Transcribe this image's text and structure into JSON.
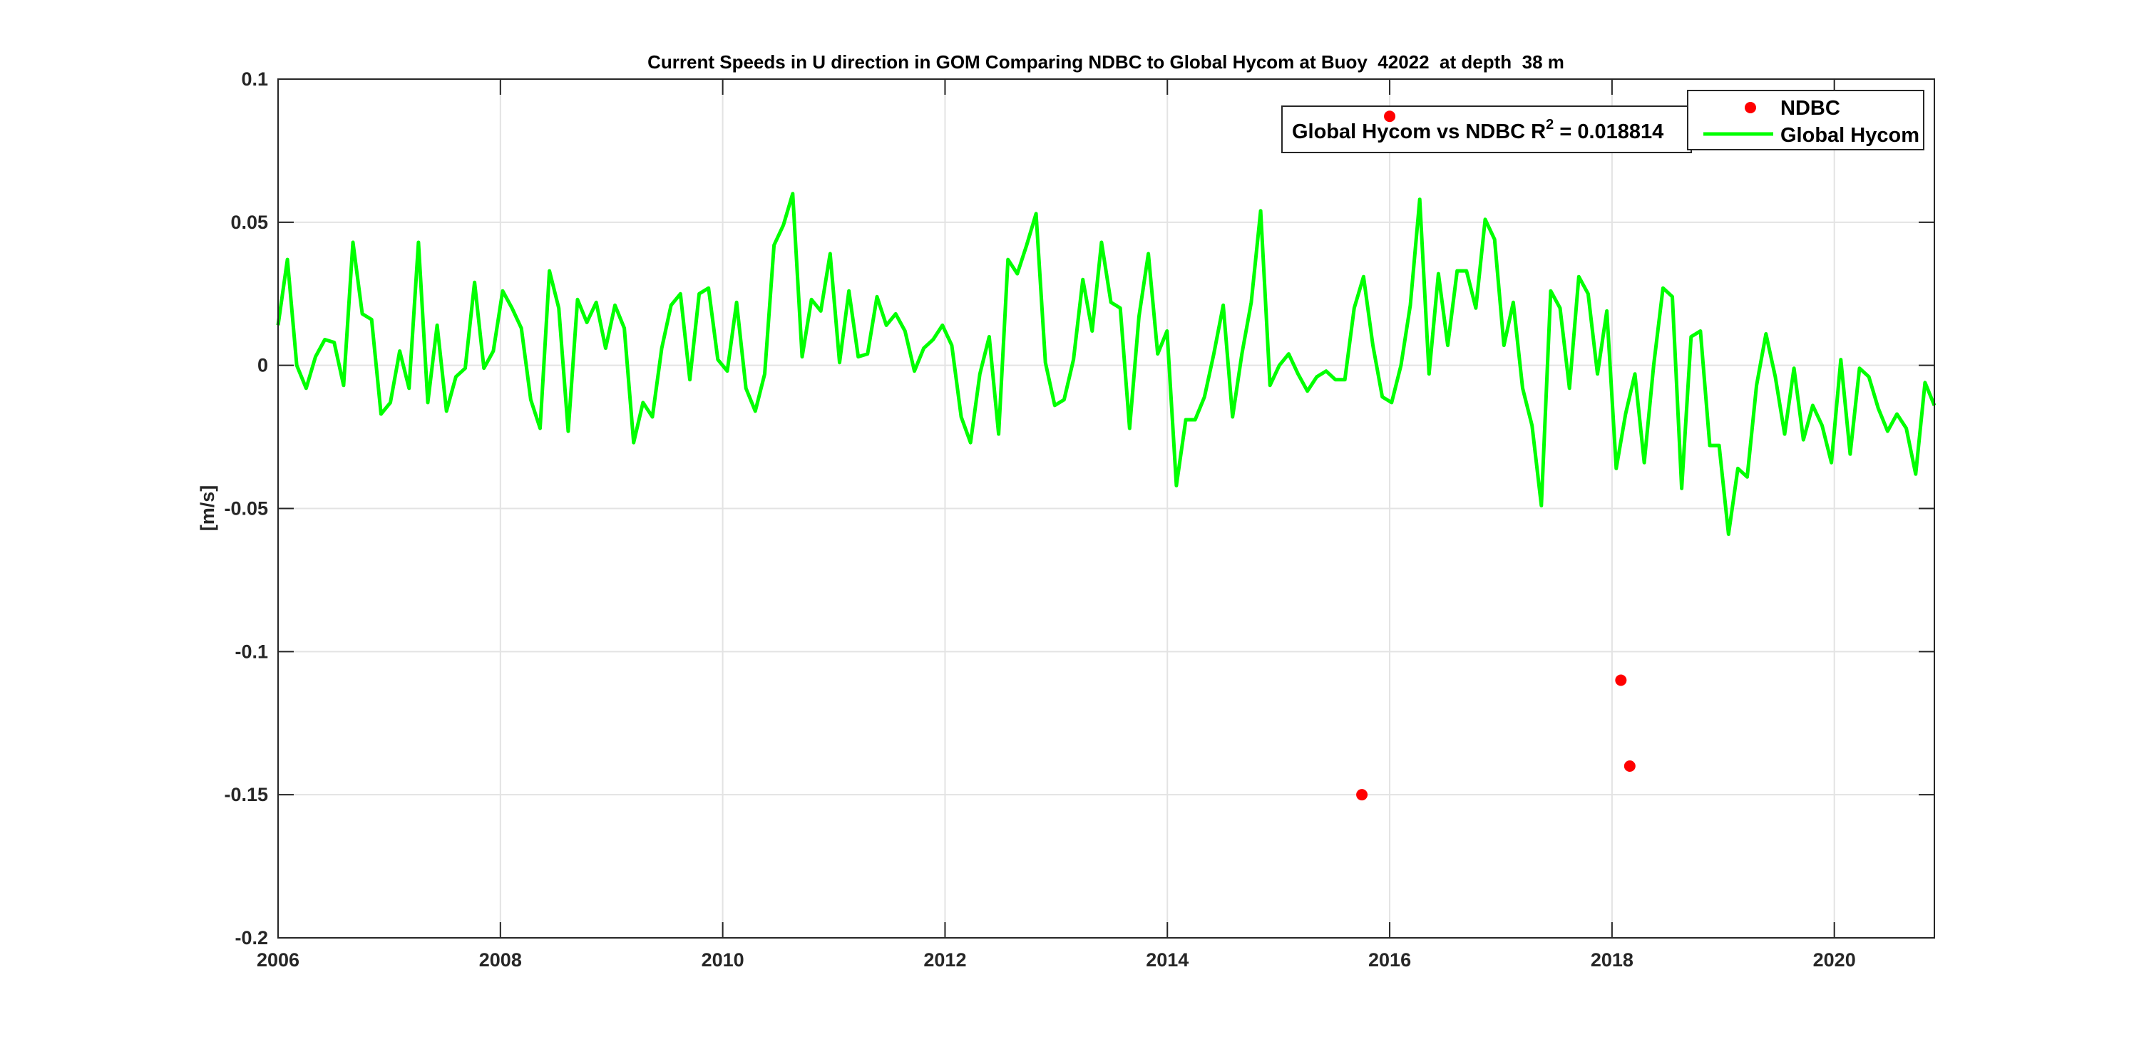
{
  "chart_data": {
    "type": "line",
    "title": "Current Speeds in U direction in GOM Comparing NDBC to Global Hycom at Buoy  42022  at depth  38 m",
    "xlabel": "",
    "ylabel": "[m/s]",
    "xlim": [
      2006,
      2020.9
    ],
    "ylim": [
      -0.2,
      0.1
    ],
    "grid": true,
    "xticks": [
      2006,
      2008,
      2010,
      2012,
      2014,
      2016,
      2018,
      2020
    ],
    "xtick_labels": [
      "2006",
      "2008",
      "2010",
      "2012",
      "2014",
      "2016",
      "2018",
      "2020"
    ],
    "yticks": [
      0.1,
      0.05,
      0,
      -0.05,
      -0.1,
      -0.15,
      -0.2
    ],
    "ytick_labels": [
      "0.1",
      "0.05",
      "0",
      "-0.05",
      "-0.1",
      "-0.15",
      "-0.2"
    ],
    "legend": {
      "placement": "top-right",
      "entries": [
        {
          "label": "NDBC",
          "marker": "dot",
          "color": "#ff0000"
        },
        {
          "label": "Global Hycom",
          "marker": "line",
          "color": "#00ff00"
        }
      ]
    },
    "annotation": {
      "prefix": "Global Hycom vs NDBC R",
      "sup": "2",
      "suffix": " = 0.018814"
    },
    "series": [
      {
        "name": "NDBC",
        "type": "scatter",
        "color": "#ff0000",
        "x": [
          2015.75,
          2016.0,
          2018.08,
          2018.16
        ],
        "y": [
          -0.15,
          0.087,
          -0.11,
          -0.14
        ]
      },
      {
        "name": "Global Hycom",
        "type": "line",
        "color": "#00ff00",
        "x_start": 2006.0,
        "x_end": 2020.9,
        "y": [
          0.014,
          0.037,
          0,
          -0.008,
          0.003,
          0.009,
          0.008,
          -0.007,
          0.043,
          0.018,
          0.016,
          -0.017,
          -0.013,
          0.005,
          -0.008,
          0.043,
          -0.013,
          0.014,
          -0.016,
          -0.004,
          -0.001,
          0.029,
          -0.001,
          0.005,
          0.026,
          0.02,
          0.013,
          -0.012,
          -0.022,
          0.033,
          0.02,
          -0.023,
          0.023,
          0.015,
          0.022,
          0.006,
          0.021,
          0.013,
          -0.027,
          -0.013,
          -0.018,
          0.006,
          0.021,
          0.025,
          -0.005,
          0.025,
          0.027,
          0.002,
          -0.002,
          0.022,
          -0.008,
          -0.016,
          -0.003,
          0.042,
          0.049,
          0.06,
          0.003,
          0.023,
          0.019,
          0.039,
          0.001,
          0.026,
          0.003,
          0.004,
          0.024,
          0.014,
          0.018,
          0.012,
          -0.002,
          0.006,
          0.009,
          0.014,
          0.007,
          -0.018,
          -0.027,
          -0.003,
          0.01,
          -0.024,
          0.037,
          0.032,
          0.042,
          0.053,
          0.001,
          -0.014,
          -0.012,
          0.002,
          0.03,
          0.012,
          0.043,
          0.022,
          0.02,
          -0.022,
          0.017,
          0.039,
          0.004,
          0.012,
          -0.042,
          -0.019,
          -0.019,
          -0.011,
          0.004,
          0.021,
          -0.018,
          0.004,
          0.022,
          0.054,
          -0.007,
          0.0,
          0.004,
          -0.003,
          -0.009,
          -0.004,
          -0.002,
          -0.005,
          -0.005,
          0.02,
          0.031,
          0.007,
          -0.011,
          -0.013,
          0.0,
          0.021,
          0.058,
          -0.003,
          0.032,
          0.007,
          0.033,
          0.033,
          0.02,
          0.051,
          0.044,
          0.007,
          0.022,
          -0.008,
          -0.021,
          -0.049,
          0.026,
          0.02,
          -0.008,
          0.031,
          0.025,
          -0.003,
          0.019,
          -0.036,
          -0.017,
          -0.003,
          -0.034,
          0.0,
          0.027,
          0.024,
          -0.043,
          0.01,
          0.012,
          -0.028,
          -0.028,
          -0.059,
          -0.036,
          -0.039,
          -0.007,
          0.011,
          -0.004,
          -0.024,
          -0.001,
          -0.026,
          -0.014,
          -0.021,
          -0.034,
          0.002,
          -0.031,
          -0.001,
          -0.004,
          -0.015,
          -0.023,
          -0.017,
          -0.022,
          -0.038,
          -0.006,
          -0.014
        ]
      }
    ]
  }
}
